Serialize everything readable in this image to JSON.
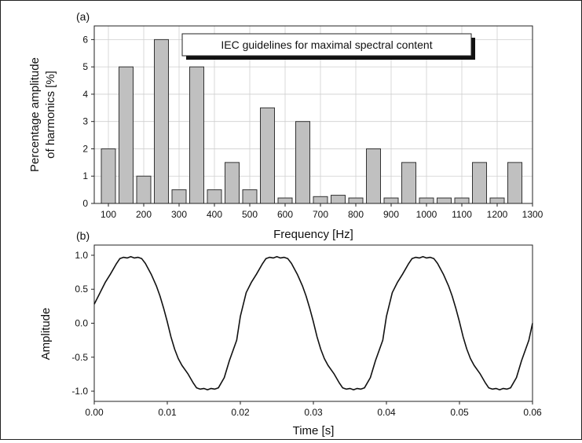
{
  "chart_data": [
    {
      "id": "a",
      "type": "bar",
      "panel_label": "(a)",
      "annotation": "IEC guidelines for maximal spectral content",
      "xlabel": "Frequency [Hz]",
      "ylabel_lines": [
        "Percentage amplitude",
        "of harmonics [%]"
      ],
      "xlim": [
        60,
        1300
      ],
      "ylim": [
        0,
        6.5
      ],
      "x_ticks": [
        100,
        200,
        300,
        400,
        500,
        600,
        700,
        800,
        900,
        1000,
        1100,
        1200,
        1300
      ],
      "y_ticks": [
        0,
        1,
        2,
        3,
        4,
        5,
        6
      ],
      "grid": true,
      "bar_color": "#c0c0c0",
      "bar_width": 40,
      "x": [
        100,
        150,
        200,
        250,
        300,
        350,
        400,
        450,
        500,
        550,
        600,
        650,
        700,
        750,
        800,
        850,
        900,
        950,
        1000,
        1050,
        1100,
        1150,
        1200,
        1250
      ],
      "values": [
        2,
        5,
        1,
        6,
        0.5,
        5,
        0.5,
        1.5,
        0.5,
        3.5,
        0.2,
        3,
        0.25,
        0.3,
        0.2,
        2,
        0.2,
        1.5,
        0.2,
        0.2,
        0.2,
        1.5,
        0.2,
        1.5
      ]
    },
    {
      "id": "b",
      "type": "line",
      "panel_label": "(b)",
      "xlabel": "Time [s]",
      "ylabel": "Amplitude",
      "xlim": [
        0,
        0.06
      ],
      "ylim": [
        -1.15,
        1.15
      ],
      "x_ticks": [
        "0.00",
        "0.01",
        "0.02",
        "0.03",
        "0.04",
        "0.05",
        "0.06"
      ],
      "y_ticks": [
        "1.0",
        "0.5",
        "0.0",
        "-0.5",
        "-1.0"
      ],
      "grid": false,
      "line_color": "#111111",
      "x": [
        0,
        0.0008,
        0.0015,
        0.0022,
        0.003,
        0.0035,
        0.004,
        0.0045,
        0.005,
        0.0055,
        0.006,
        0.0065,
        0.007,
        0.0078,
        0.0085,
        0.009,
        0.0095,
        0.01,
        0.0105,
        0.011,
        0.0115,
        0.012,
        0.0128,
        0.0135,
        0.014,
        0.0145,
        0.015,
        0.0155,
        0.016,
        0.0165,
        0.017,
        0.0178,
        0.0185,
        0.019,
        0.0195,
        0.02,
        0.0208,
        0.0215,
        0.0222,
        0.023,
        0.0235,
        0.024,
        0.0245,
        0.025,
        0.0255,
        0.026,
        0.0265,
        0.027,
        0.0278,
        0.0285,
        0.029,
        0.0295,
        0.03,
        0.0305,
        0.031,
        0.0315,
        0.032,
        0.0328,
        0.0335,
        0.034,
        0.0345,
        0.035,
        0.0355,
        0.036,
        0.0365,
        0.037,
        0.0378,
        0.0385,
        0.039,
        0.0395,
        0.04,
        0.0408,
        0.0415,
        0.0422,
        0.043,
        0.0435,
        0.044,
        0.0445,
        0.045,
        0.0455,
        0.046,
        0.0465,
        0.047,
        0.0478,
        0.0485,
        0.049,
        0.0495,
        0.05,
        0.0505,
        0.051,
        0.0515,
        0.052,
        0.0528,
        0.0535,
        0.054,
        0.0545,
        0.055,
        0.0555,
        0.056,
        0.0565,
        0.057,
        0.0578,
        0.0585,
        0.059,
        0.0595,
        0.06
      ],
      "y": [
        0.28,
        0.45,
        0.6,
        0.72,
        0.87,
        0.95,
        0.97,
        0.96,
        0.98,
        0.96,
        0.97,
        0.95,
        0.88,
        0.72,
        0.55,
        0.4,
        0.22,
        0.02,
        -0.2,
        -0.38,
        -0.52,
        -0.62,
        -0.74,
        -0.87,
        -0.95,
        -0.97,
        -0.96,
        -0.98,
        -0.96,
        -0.97,
        -0.95,
        -0.8,
        -0.55,
        -0.4,
        -0.25,
        0.1,
        0.45,
        0.6,
        0.72,
        0.87,
        0.95,
        0.97,
        0.96,
        0.98,
        0.96,
        0.97,
        0.95,
        0.88,
        0.72,
        0.55,
        0.4,
        0.22,
        0.02,
        -0.2,
        -0.38,
        -0.52,
        -0.62,
        -0.74,
        -0.87,
        -0.95,
        -0.97,
        -0.96,
        -0.98,
        -0.96,
        -0.97,
        -0.95,
        -0.8,
        -0.55,
        -0.4,
        -0.25,
        0.1,
        0.45,
        0.6,
        0.72,
        0.87,
        0.95,
        0.97,
        0.96,
        0.98,
        0.96,
        0.97,
        0.95,
        0.88,
        0.72,
        0.55,
        0.4,
        0.22,
        0.02,
        -0.2,
        -0.38,
        -0.52,
        -0.62,
        -0.74,
        -0.87,
        -0.95,
        -0.97,
        -0.96,
        -0.98,
        -0.96,
        -0.97,
        -0.95,
        -0.8,
        -0.55,
        -0.4,
        -0.25,
        0.0
      ]
    }
  ]
}
